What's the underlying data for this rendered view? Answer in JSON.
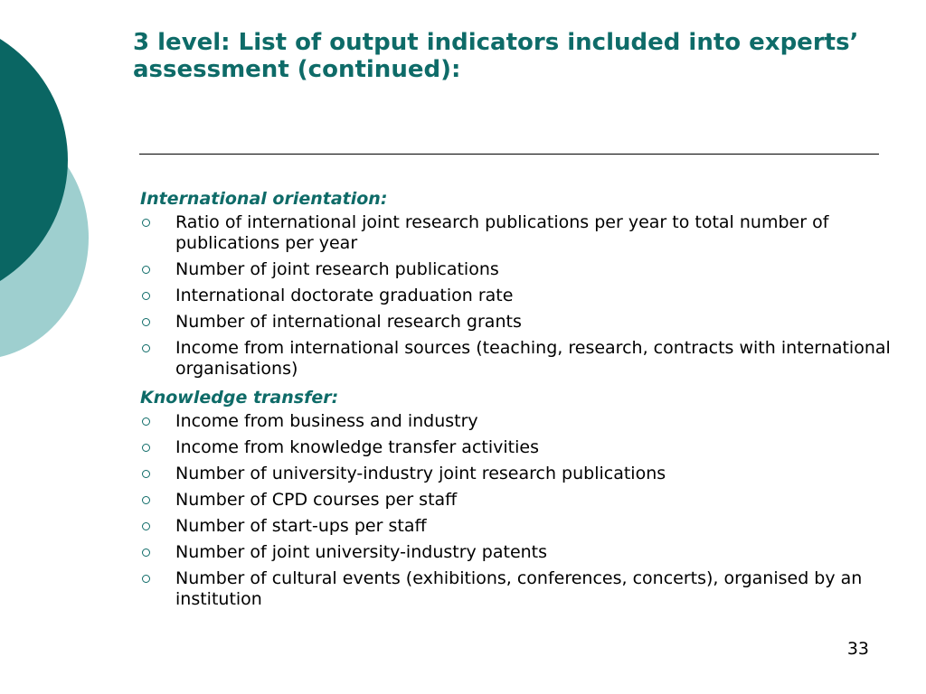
{
  "title": {
    "line1": "3  level: List of output indicators included into experts’",
    "line2": "assessment (continued):"
  },
  "sections": [
    {
      "heading": "International orientation:",
      "items": [
        "Ratio of international joint research publications per year to total number of publications per year",
        "Number of joint research publications",
        "International doctorate graduation rate",
        "Number of international research grants",
        "Income from international sources (teaching, research, contracts with international organisations)"
      ]
    },
    {
      "heading": "Knowledge transfer:",
      "items": [
        "Income from business and industry",
        "Income from knowledge transfer activities",
        "Number of university-industry joint research publications",
        "Number of CPD courses per staff",
        "Number of start-ups per staff",
        "Number of joint university-industry patents",
        "Number of cultural events (exhibitions, conferences, concerts), organised by an institution"
      ]
    }
  ],
  "page_number": "33",
  "colors": {
    "accent": "#0e6b68",
    "decor_dark": "#0a6663",
    "decor_light": "#9ecfcf"
  }
}
